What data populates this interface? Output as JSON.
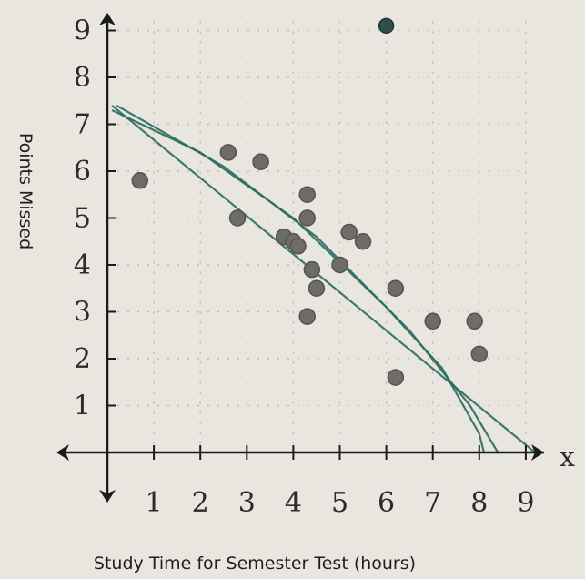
{
  "chart_data": {
    "type": "scatter",
    "title": "",
    "xlabel": "Study Time for Semester Test (hours)",
    "ylabel": "Points Missed",
    "x_axis_variable": "x",
    "xlim": [
      0,
      9
    ],
    "ylim": [
      0,
      9
    ],
    "x_ticks": [
      1,
      2,
      3,
      4,
      5,
      6,
      7,
      8,
      9
    ],
    "y_ticks": [
      1,
      2,
      3,
      4,
      5,
      6,
      7,
      8,
      9
    ],
    "grid": true,
    "colors": {
      "points": "#6e6c68",
      "outlier": "#2f4f4f",
      "trend": "#2a6b62",
      "axis": "#1a1a1a",
      "grid": "#bdbab3",
      "background": "#e9e6df"
    },
    "points": [
      {
        "x": 0.7,
        "y": 5.8
      },
      {
        "x": 2.6,
        "y": 6.4
      },
      {
        "x": 2.8,
        "y": 5.0
      },
      {
        "x": 3.3,
        "y": 6.2
      },
      {
        "x": 3.8,
        "y": 4.6
      },
      {
        "x": 4.0,
        "y": 4.5
      },
      {
        "x": 4.1,
        "y": 4.4
      },
      {
        "x": 4.3,
        "y": 5.5
      },
      {
        "x": 4.3,
        "y": 5.0
      },
      {
        "x": 4.4,
        "y": 3.9
      },
      {
        "x": 4.5,
        "y": 3.5
      },
      {
        "x": 4.3,
        "y": 2.9
      },
      {
        "x": 5.0,
        "y": 4.0
      },
      {
        "x": 5.2,
        "y": 4.7
      },
      {
        "x": 5.5,
        "y": 4.5
      },
      {
        "x": 6.2,
        "y": 3.5
      },
      {
        "x": 6.2,
        "y": 1.6
      },
      {
        "x": 7.0,
        "y": 2.8
      },
      {
        "x": 7.9,
        "y": 2.8
      },
      {
        "x": 8.0,
        "y": 2.1
      },
      {
        "x": 6.0,
        "y": 9.1,
        "outlier": true
      }
    ],
    "trend_lines": [
      {
        "type": "linear",
        "points": [
          [
            0.1,
            7.4
          ],
          [
            9.2,
            0.0
          ]
        ]
      },
      {
        "type": "curve",
        "points": [
          [
            0.1,
            7.3
          ],
          [
            2.0,
            6.4
          ],
          [
            4.0,
            5.0
          ],
          [
            6.0,
            3.1
          ],
          [
            7.2,
            1.8
          ],
          [
            8.0,
            0.4
          ],
          [
            8.1,
            0.0
          ]
        ]
      },
      {
        "type": "curve",
        "points": [
          [
            0.2,
            7.4
          ],
          [
            2.5,
            6.1
          ],
          [
            4.5,
            4.6
          ],
          [
            6.5,
            2.6
          ],
          [
            7.8,
            1.0
          ],
          [
            8.4,
            0.0
          ]
        ]
      }
    ]
  }
}
